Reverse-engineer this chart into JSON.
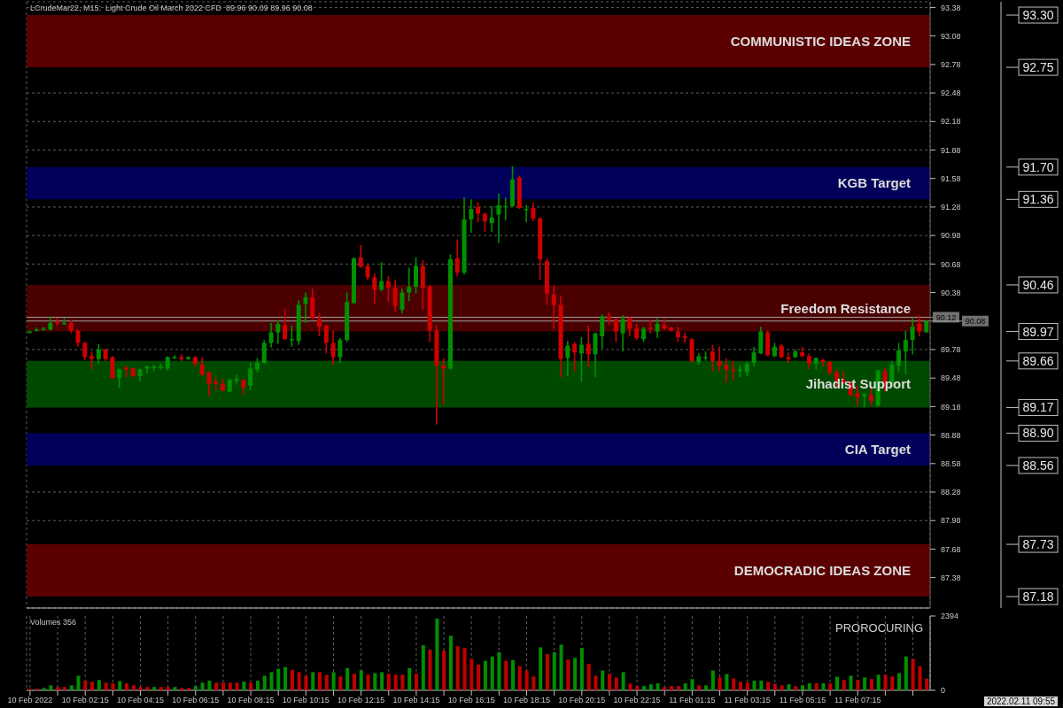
{
  "chart_data": [
    {
      "type": "candlestick",
      "title": "LCrudeMar22, M15:  Light Crude Oil March 2022 CFD  89.96 90.09 89.96 90.08",
      "categories": [
        null,
        null,
        null,
        null,
        null,
        null,
        null,
        null,
        null,
        null,
        null,
        null,
        null,
        null,
        null,
        null,
        null,
        null,
        null,
        null,
        null,
        null,
        null,
        null,
        null,
        null,
        null,
        null,
        null,
        null,
        null,
        null,
        null,
        null,
        null,
        null,
        null,
        null,
        null,
        null,
        null,
        null,
        null,
        null,
        null,
        null,
        null,
        null,
        null,
        null,
        null,
        null,
        null,
        null,
        null,
        null,
        null,
        null,
        null,
        null,
        null,
        null,
        null,
        null,
        null,
        null,
        null,
        null,
        null,
        null,
        null,
        null,
        null,
        null,
        null,
        null,
        null,
        null,
        null,
        null,
        null,
        null,
        null,
        null,
        null,
        null,
        null,
        null,
        null,
        null,
        null,
        null,
        null,
        null,
        null,
        null,
        null,
        null,
        null,
        null,
        null,
        null,
        null,
        null,
        null,
        null,
        null,
        null,
        null,
        null,
        null,
        null,
        null,
        null,
        null,
        null,
        null,
        null,
        null,
        null,
        null,
        null,
        null,
        null,
        null,
        null,
        null,
        null,
        null,
        null,
        null
      ],
      "ohlc": [
        [
          89.96,
          89.98,
          89.95,
          89.97
        ],
        [
          89.98,
          90.01,
          89.97,
          89.99
        ],
        [
          89.99,
          90.02,
          89.98,
          90.0
        ],
        [
          89.99,
          90.13,
          89.98,
          90.06
        ],
        [
          90.07,
          90.11,
          90.03,
          90.06
        ],
        [
          90.06,
          90.11,
          90.04,
          90.06
        ],
        [
          90.06,
          90.09,
          89.95,
          89.98
        ],
        [
          89.98,
          89.99,
          89.81,
          89.85
        ],
        [
          89.85,
          89.86,
          89.67,
          89.7
        ],
        [
          89.71,
          89.76,
          89.57,
          89.68
        ],
        [
          89.68,
          89.84,
          89.63,
          89.78
        ],
        [
          89.78,
          89.79,
          89.66,
          89.68
        ],
        [
          89.7,
          89.71,
          89.47,
          89.48
        ],
        [
          89.48,
          89.58,
          89.38,
          89.57
        ],
        [
          89.59,
          89.61,
          89.49,
          89.57
        ],
        [
          89.58,
          89.59,
          89.49,
          89.5
        ],
        [
          89.5,
          89.58,
          89.45,
          89.57
        ],
        [
          89.58,
          89.61,
          89.53,
          89.6
        ],
        [
          89.59,
          89.62,
          89.55,
          89.6
        ],
        [
          89.59,
          89.63,
          89.57,
          89.6
        ],
        [
          89.58,
          89.71,
          89.56,
          89.7
        ],
        [
          89.7,
          89.72,
          89.68,
          89.7
        ],
        [
          89.7,
          89.73,
          89.66,
          89.68
        ],
        [
          89.68,
          89.71,
          89.67,
          89.7
        ],
        [
          89.7,
          89.71,
          89.6,
          89.63
        ],
        [
          89.62,
          89.7,
          89.5,
          89.52
        ],
        [
          89.54,
          89.55,
          89.29,
          89.42
        ],
        [
          89.44,
          89.49,
          89.35,
          89.42
        ],
        [
          89.42,
          89.47,
          89.34,
          89.35
        ],
        [
          89.34,
          89.47,
          89.33,
          89.46
        ],
        [
          89.45,
          89.52,
          89.41,
          89.47
        ],
        [
          89.46,
          89.47,
          89.3,
          89.38
        ],
        [
          89.4,
          89.64,
          89.35,
          89.58
        ],
        [
          89.57,
          89.69,
          89.54,
          89.64
        ],
        [
          89.64,
          89.88,
          89.63,
          89.85
        ],
        [
          89.85,
          90.06,
          89.8,
          89.96
        ],
        [
          89.96,
          90.09,
          89.84,
          90.05
        ],
        [
          90.04,
          90.21,
          89.88,
          89.89
        ],
        [
          89.88,
          90.03,
          89.81,
          89.89
        ],
        [
          89.87,
          90.3,
          89.83,
          90.25
        ],
        [
          90.26,
          90.38,
          90.06,
          90.33
        ],
        [
          90.33,
          90.42,
          90.1,
          90.11
        ],
        [
          90.1,
          90.16,
          89.92,
          90.02
        ],
        [
          90.03,
          90.04,
          89.74,
          89.85
        ],
        [
          89.85,
          89.98,
          89.62,
          89.7
        ],
        [
          89.7,
          89.9,
          89.64,
          89.88
        ],
        [
          89.88,
          90.38,
          89.86,
          90.28
        ],
        [
          90.27,
          90.75,
          90.26,
          90.74
        ],
        [
          90.75,
          90.88,
          90.64,
          90.65
        ],
        [
          90.66,
          90.68,
          90.51,
          90.54
        ],
        [
          90.54,
          90.58,
          90.26,
          90.41
        ],
        [
          90.41,
          90.7,
          90.39,
          90.5
        ],
        [
          90.5,
          90.55,
          90.28,
          90.43
        ],
        [
          90.43,
          90.51,
          90.18,
          90.24
        ],
        [
          90.2,
          90.42,
          90.16,
          90.38
        ],
        [
          90.38,
          90.64,
          90.29,
          90.44
        ],
        [
          90.44,
          90.75,
          90.37,
          90.66
        ],
        [
          90.66,
          90.72,
          90.2,
          90.43
        ],
        [
          90.44,
          90.46,
          89.86,
          89.98
        ],
        [
          89.98,
          90.04,
          88.99,
          89.61
        ],
        [
          89.61,
          89.69,
          89.2,
          89.58
        ],
        [
          89.58,
          90.78,
          89.57,
          90.73
        ],
        [
          90.74,
          90.94,
          90.55,
          90.59
        ],
        [
          90.59,
          91.38,
          90.57,
          91.15
        ],
        [
          91.15,
          91.36,
          91.01,
          91.26
        ],
        [
          91.28,
          91.33,
          91.12,
          91.21
        ],
        [
          91.21,
          91.22,
          91.02,
          91.13
        ],
        [
          91.11,
          91.29,
          91.02,
          91.17
        ],
        [
          91.2,
          91.42,
          90.9,
          91.3
        ],
        [
          91.29,
          91.38,
          91.14,
          91.29
        ],
        [
          91.29,
          91.71,
          91.28,
          91.57
        ],
        [
          91.59,
          91.61,
          91.26,
          91.27
        ],
        [
          91.26,
          91.3,
          91.12,
          91.26
        ],
        [
          91.27,
          91.33,
          91.13,
          91.16
        ],
        [
          91.16,
          91.17,
          90.51,
          90.73
        ],
        [
          90.71,
          90.74,
          90.25,
          90.37
        ],
        [
          90.36,
          90.45,
          90.0,
          90.25
        ],
        [
          90.25,
          90.35,
          89.49,
          89.68
        ],
        [
          89.69,
          89.87,
          89.5,
          89.82
        ],
        [
          89.84,
          89.86,
          89.55,
          89.75
        ],
        [
          89.74,
          89.91,
          89.44,
          89.83
        ],
        [
          89.84,
          90.03,
          89.6,
          89.73
        ],
        [
          89.73,
          89.96,
          89.49,
          89.95
        ],
        [
          89.92,
          90.15,
          89.79,
          90.13
        ],
        [
          90.13,
          90.17,
          90.04,
          90.1
        ],
        [
          90.1,
          90.11,
          89.86,
          89.97
        ],
        [
          89.95,
          90.14,
          89.76,
          90.1
        ],
        [
          90.11,
          90.13,
          89.92,
          90.0
        ],
        [
          90.0,
          90.05,
          89.88,
          89.9
        ],
        [
          89.89,
          90.02,
          89.86,
          90.0
        ],
        [
          90.01,
          90.09,
          89.95,
          90.0
        ],
        [
          89.97,
          90.11,
          89.9,
          90.05
        ],
        [
          90.04,
          90.1,
          89.99,
          90.0
        ],
        [
          90.01,
          90.02,
          89.97,
          89.98
        ],
        [
          89.97,
          90.02,
          89.86,
          89.91
        ],
        [
          89.92,
          89.96,
          89.85,
          89.9
        ],
        [
          89.89,
          89.9,
          89.64,
          89.66
        ],
        [
          89.65,
          89.74,
          89.62,
          89.71
        ],
        [
          89.7,
          89.76,
          89.66,
          89.7
        ],
        [
          89.76,
          89.83,
          89.55,
          89.66
        ],
        [
          89.66,
          89.81,
          89.55,
          89.61
        ],
        [
          89.62,
          89.69,
          89.43,
          89.57
        ],
        [
          89.57,
          89.66,
          89.46,
          89.56
        ],
        [
          89.56,
          89.62,
          89.49,
          89.57
        ],
        [
          89.54,
          89.65,
          89.5,
          89.63
        ],
        [
          89.64,
          89.81,
          89.6,
          89.75
        ],
        [
          89.74,
          90.02,
          89.73,
          89.97
        ],
        [
          89.96,
          89.98,
          89.71,
          89.72
        ],
        [
          89.71,
          89.85,
          89.7,
          89.81
        ],
        [
          89.82,
          89.84,
          89.69,
          89.7
        ],
        [
          89.7,
          89.75,
          89.64,
          89.68
        ],
        [
          89.7,
          89.78,
          89.69,
          89.76
        ],
        [
          89.75,
          89.81,
          89.7,
          89.71
        ],
        [
          89.71,
          89.74,
          89.57,
          89.63
        ],
        [
          89.63,
          89.7,
          89.57,
          89.69
        ],
        [
          89.67,
          89.68,
          89.6,
          89.65
        ],
        [
          89.65,
          89.66,
          89.51,
          89.54
        ],
        [
          89.54,
          89.57,
          89.37,
          89.45
        ],
        [
          89.46,
          89.55,
          89.42,
          89.43
        ],
        [
          89.43,
          89.45,
          89.29,
          89.3
        ],
        [
          89.32,
          89.4,
          89.19,
          89.28
        ],
        [
          89.29,
          89.32,
          89.17,
          89.31
        ],
        [
          89.3,
          89.37,
          89.19,
          89.24
        ],
        [
          89.19,
          89.57,
          89.18,
          89.56
        ],
        [
          89.55,
          89.59,
          89.34,
          89.42
        ],
        [
          89.42,
          89.66,
          89.38,
          89.62
        ],
        [
          89.61,
          89.85,
          89.55,
          89.77
        ],
        [
          89.76,
          89.98,
          89.52,
          89.88
        ],
        [
          89.88,
          90.11,
          89.73,
          90.02
        ],
        [
          90.05,
          90.14,
          89.92,
          89.97
        ],
        [
          89.96,
          90.09,
          89.96,
          90.08
        ]
      ],
      "ylim": [
        87.06,
        93.44
      ],
      "yticks": [
        87.38,
        87.68,
        87.98,
        88.28,
        88.58,
        88.88,
        89.18,
        89.48,
        89.78,
        90.38,
        90.68,
        90.98,
        91.28,
        91.58,
        91.88,
        92.18,
        92.48,
        92.78,
        93.08,
        93.38
      ],
      "y2lim": [
        87.06,
        93.44
      ],
      "y2ticks": [
        87.18,
        87.73,
        88.56,
        {
          "value": 88.9,
          "label": "88.90"
        },
        89.17,
        89.66,
        89.97,
        90.46,
        91.36,
        {
          "value": 91.7,
          "label": "91.70"
        },
        92.75,
        {
          "value": 93.3,
          "label": "93.30"
        }
      ],
      "tick_labels": "y",
      "grid": true,
      "bands": [
        {
          "axis": "y",
          "from": 92.75,
          "to": 93.3,
          "label": "COMMUNISTIC IDEAS ZONE",
          "color": "#5a0000"
        },
        {
          "axis": "y",
          "from": 91.36,
          "to": 91.7,
          "label": "KGB Target",
          "color": "#00005a"
        },
        {
          "axis": "y",
          "from": 89.97,
          "to": 90.46,
          "label": "Freedom Resistance",
          "color": "#4a0000"
        },
        {
          "axis": "y",
          "from": 89.17,
          "to": 89.66,
          "label": "Jihadist Support",
          "color": "#004a00"
        },
        {
          "axis": "y",
          "from": 88.56,
          "to": 88.9,
          "label": "CIA Target",
          "color": "#00005a"
        },
        {
          "axis": "y",
          "from": 87.18,
          "to": 87.73,
          "label": "DEMOCRADIC IDEAS ZONE",
          "color": "#5a0000"
        }
      ],
      "ref_lines": [
        {
          "axis": "y",
          "value": 90.12,
          "label": "90.12",
          "color": "#a0a0a0"
        },
        {
          "axis": "y",
          "value": 90.08,
          "label": "90.08",
          "color": "#a0a0a0"
        }
      ]
    },
    {
      "type": "bar",
      "title": "Volumes 356",
      "categories": [
        "10 Feb 2022",
        null,
        null,
        null,
        null,
        null,
        null,
        null,
        "10 Feb 02:15",
        null,
        null,
        null,
        null,
        null,
        null,
        null,
        "10 Feb 04:15",
        null,
        null,
        null,
        null,
        null,
        null,
        null,
        "10 Feb 06:15",
        null,
        null,
        null,
        null,
        null,
        null,
        null,
        "10 Feb 08:15",
        null,
        null,
        null,
        null,
        null,
        null,
        null,
        "10 Feb 10:15",
        null,
        null,
        null,
        null,
        null,
        null,
        null,
        "10 Feb 12:15",
        null,
        null,
        null,
        null,
        null,
        null,
        null,
        "10 Feb 14:15",
        null,
        null,
        null,
        null,
        null,
        null,
        null,
        "10 Feb 16:15",
        null,
        null,
        null,
        null,
        null,
        null,
        null,
        "10 Feb 18:15",
        null,
        null,
        null,
        null,
        null,
        null,
        null,
        "10 Feb 20:15",
        null,
        null,
        null,
        null,
        null,
        null,
        null,
        "10 Feb 22:15",
        null,
        null,
        null,
        null,
        null,
        null,
        null,
        "11 Feb 01:15",
        null,
        null,
        null,
        null,
        null,
        null,
        null,
        "11 Feb 03:15",
        null,
        null,
        null,
        null,
        null,
        null,
        null,
        "11 Feb 05:15",
        null,
        null,
        null,
        null,
        null,
        null,
        null,
        "11 Feb 07:15",
        null,
        null,
        null,
        null,
        null,
        null,
        null,
        null,
        null,
        null
      ],
      "values": [
        43,
        53,
        75,
        160,
        107,
        107,
        160,
        469,
        309,
        277,
        330,
        245,
        224,
        298,
        224,
        160,
        107,
        107,
        107,
        107,
        107,
        107,
        75,
        75,
        138,
        245,
        309,
        245,
        245,
        245,
        245,
        277,
        245,
        309,
        469,
        586,
        692,
        746,
        660,
        586,
        469,
        586,
        586,
        501,
        586,
        447,
        714,
        533,
        639,
        501,
        554,
        586,
        533,
        501,
        501,
        714,
        533,
        1448,
        1310,
        2311,
        1278,
        1757,
        1416,
        1363,
        1012,
        831,
        948,
        1086,
        1225,
        948,
        969,
        777,
        639,
        447,
        1384,
        1172,
        1225,
        1470,
        990,
        1044,
        1363,
        852,
        469,
        639,
        533,
        415,
        586,
        213,
        138,
        138,
        192,
        224,
        107,
        138,
        138,
        224,
        362,
        160,
        160,
        639,
        415,
        522,
        383,
        277,
        245,
        309,
        309,
        277,
        213,
        160,
        192,
        138,
        160,
        224,
        224,
        224,
        224,
        437,
        330,
        469,
        330,
        415,
        362,
        501,
        501,
        447,
        554,
        1086,
        1001,
        777,
        383
      ],
      "colors": [
        "#c00000",
        "#c00000",
        "#009000",
        "#009000",
        "#c00000",
        "#c00000",
        "#009000",
        "#009000",
        "#c00000",
        "#c00000",
        "#009000",
        "#c00000",
        "#c00000",
        "#009000",
        "#c00000",
        "#c00000",
        "#c00000",
        "#c00000",
        "#009000",
        "#c00000",
        "#c00000",
        "#009000",
        "#c00000",
        "#c00000",
        "#009000",
        "#009000",
        "#009000",
        "#c00000",
        "#c00000",
        "#c00000",
        "#c00000",
        "#009000",
        "#c00000",
        "#009000",
        "#009000",
        "#009000",
        "#009000",
        "#009000",
        "#c00000",
        "#c00000",
        "#c00000",
        "#009000",
        "#c00000",
        "#c00000",
        "#009000",
        "#c00000",
        "#009000",
        "#c00000",
        "#009000",
        "#c00000",
        "#009000",
        "#009000",
        "#c00000",
        "#c00000",
        "#c00000",
        "#009000",
        "#c00000",
        "#009000",
        "#c00000",
        "#009000",
        "#c00000",
        "#009000",
        "#c00000",
        "#c00000",
        "#c00000",
        "#c00000",
        "#009000",
        "#009000",
        "#009000",
        "#c00000",
        "#009000",
        "#c00000",
        "#c00000",
        "#c00000",
        "#009000",
        "#c00000",
        "#009000",
        "#009000",
        "#c00000",
        "#009000",
        "#009000",
        "#c00000",
        "#c00000",
        "#009000",
        "#c00000",
        "#c00000",
        "#009000",
        "#c00000",
        "#c00000",
        "#009000",
        "#009000",
        "#009000",
        "#c00000",
        "#c00000",
        "#c00000",
        "#009000",
        "#009000",
        "#c00000",
        "#009000",
        "#009000",
        "#c00000",
        "#009000",
        "#c00000",
        "#c00000",
        "#c00000",
        "#009000",
        "#009000",
        "#c00000",
        "#c00000",
        "#c00000",
        "#009000",
        "#c00000",
        "#009000",
        "#009000",
        "#c00000",
        "#009000",
        "#c00000",
        "#009000",
        "#c00000",
        "#009000",
        "#c00000",
        "#009000",
        "#c00000",
        "#009000",
        "#c00000",
        "#c00000",
        "#009000",
        "#009000",
        "#c00000",
        "#c00000",
        "#c00000"
      ],
      "ylim": [
        0,
        2394
      ],
      "yticks": [
        0,
        2394
      ],
      "grid": "x",
      "annotations": [
        "PROROCURING",
        "2022.02.11 09:55"
      ]
    }
  ]
}
